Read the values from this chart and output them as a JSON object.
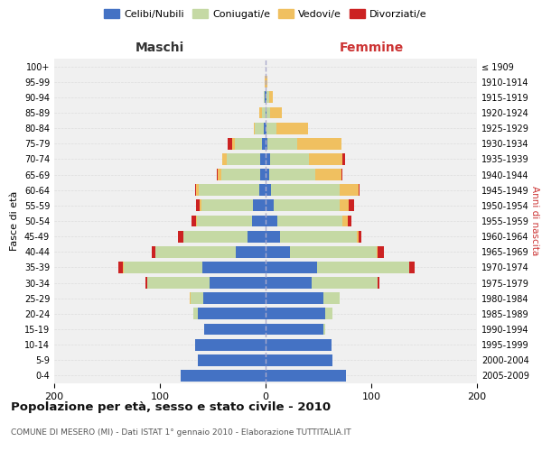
{
  "age_groups": [
    "0-4",
    "5-9",
    "10-14",
    "15-19",
    "20-24",
    "25-29",
    "30-34",
    "35-39",
    "40-44",
    "45-49",
    "50-54",
    "55-59",
    "60-64",
    "65-69",
    "70-74",
    "75-79",
    "80-84",
    "85-89",
    "90-94",
    "95-99",
    "100+"
  ],
  "birth_years": [
    "2005-2009",
    "2000-2004",
    "1995-1999",
    "1990-1994",
    "1985-1989",
    "1980-1984",
    "1975-1979",
    "1970-1974",
    "1965-1969",
    "1960-1964",
    "1955-1959",
    "1950-1954",
    "1945-1949",
    "1940-1944",
    "1935-1939",
    "1930-1934",
    "1925-1929",
    "1920-1924",
    "1915-1919",
    "1910-1914",
    "≤ 1909"
  ],
  "males": {
    "celibi": [
      80,
      64,
      67,
      58,
      64,
      59,
      53,
      60,
      28,
      17,
      13,
      12,
      6,
      5,
      5,
      3,
      2,
      0,
      1,
      0,
      0
    ],
    "coniugati": [
      0,
      0,
      0,
      0,
      4,
      12,
      59,
      74,
      76,
      61,
      52,
      49,
      57,
      37,
      32,
      26,
      8,
      3,
      1,
      0,
      0
    ],
    "vedovi": [
      0,
      0,
      0,
      0,
      0,
      1,
      0,
      1,
      0,
      0,
      1,
      1,
      3,
      3,
      4,
      3,
      1,
      3,
      0,
      1,
      0
    ],
    "divorziati": [
      0,
      0,
      0,
      0,
      0,
      0,
      2,
      4,
      4,
      5,
      4,
      4,
      1,
      1,
      0,
      4,
      0,
      0,
      0,
      0,
      0
    ]
  },
  "females": {
    "nubili": [
      76,
      63,
      62,
      55,
      56,
      55,
      44,
      49,
      23,
      14,
      11,
      8,
      5,
      3,
      4,
      2,
      1,
      1,
      1,
      0,
      0
    ],
    "coniugate": [
      0,
      0,
      0,
      1,
      7,
      15,
      62,
      87,
      82,
      72,
      62,
      62,
      65,
      44,
      37,
      28,
      9,
      3,
      2,
      0,
      0
    ],
    "vedove": [
      0,
      0,
      0,
      0,
      0,
      0,
      0,
      0,
      1,
      2,
      5,
      9,
      18,
      25,
      32,
      42,
      30,
      11,
      4,
      2,
      0
    ],
    "divorziate": [
      0,
      0,
      0,
      0,
      0,
      0,
      2,
      5,
      6,
      3,
      3,
      5,
      1,
      1,
      2,
      0,
      0,
      0,
      0,
      0,
      0
    ]
  },
  "colors": {
    "celibi": "#4472c4",
    "coniugati": "#c5d9a4",
    "vedovi": "#f0c060",
    "divorziati": "#cc2222"
  },
  "title": "Popolazione per età, sesso e stato civile - 2010",
  "subtitle": "COMUNE DI MESERO (MI) - Dati ISTAT 1° gennaio 2010 - Elaborazione TUTTITALIA.IT",
  "ylabel_left": "Fasce di età",
  "ylabel_right": "Anni di nascita",
  "xlabel_maschi": "Maschi",
  "xlabel_femmine": "Femmine",
  "xlim": 200,
  "bg_color": "#ffffff",
  "plot_bg": "#f0f0f0",
  "grid_color": "#dddddd",
  "legend_labels": [
    "Celibi/Nubili",
    "Coniugati/e",
    "Vedovi/e",
    "Divorziati/e"
  ]
}
